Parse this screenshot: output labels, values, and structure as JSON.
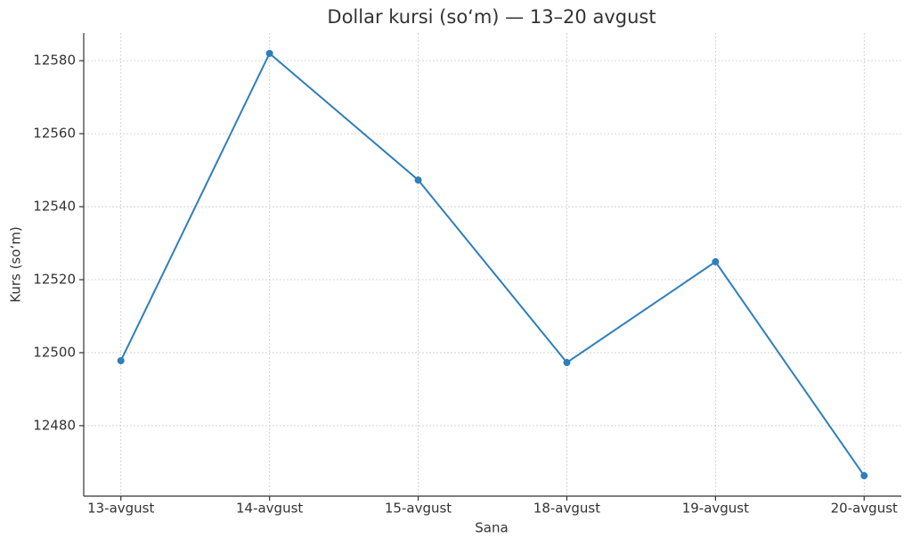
{
  "chart_data": {
    "type": "line",
    "title": "Dollar kursi (so‘m) — 13–20 avgust",
    "x_label": "Sana",
    "y_label": "Kurs (so‘m)",
    "categories": [
      "13-avgust",
      "14-avgust",
      "15-avgust",
      "18-avgust",
      "19-avgust",
      "20-avgust"
    ],
    "series": [
      {
        "name": "Kurs",
        "color": "#2e7ebc",
        "values": [
          12497.8,
          12582,
          12547.3,
          12497.3,
          12524.9,
          12466.3
        ]
      }
    ],
    "ylim": [
      12460.7,
      12587.6
    ],
    "yticks": [
      12480,
      12500,
      12520,
      12540,
      12560,
      12580
    ],
    "grid": true
  }
}
